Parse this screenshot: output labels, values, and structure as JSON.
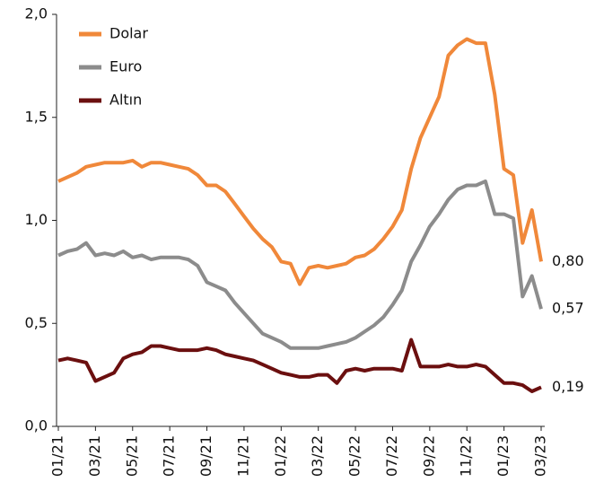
{
  "chart_data": {
    "type": "line",
    "categories": [
      "01/21",
      null,
      null,
      null,
      "03/21",
      null,
      null,
      null,
      "05/21",
      null,
      null,
      null,
      "07/21",
      null,
      null,
      null,
      "09/21",
      null,
      null,
      null,
      "11/21",
      null,
      null,
      null,
      "01/22",
      null,
      null,
      null,
      "03/22",
      null,
      null,
      null,
      "05/22",
      null,
      null,
      null,
      "07/22",
      null,
      null,
      null,
      "09/22",
      null,
      null,
      null,
      "11/22",
      null,
      null,
      null,
      "01/23",
      null,
      null,
      null,
      "03/23"
    ],
    "series": [
      {
        "name": "Dolar",
        "color": "#f0883a",
        "values": [
          1.19,
          1.21,
          1.23,
          1.26,
          1.27,
          1.28,
          1.28,
          1.28,
          1.29,
          1.26,
          1.28,
          1.28,
          1.27,
          1.26,
          1.25,
          1.22,
          1.17,
          1.17,
          1.14,
          1.08,
          1.02,
          0.96,
          0.91,
          0.87,
          0.8,
          0.79,
          0.69,
          0.77,
          0.78,
          0.77,
          0.78,
          0.79,
          0.82,
          0.83,
          0.86,
          0.91,
          0.97,
          1.05,
          1.25,
          1.4,
          1.5,
          1.6,
          1.8,
          1.85,
          1.88,
          1.86,
          1.86,
          1.61,
          1.25,
          1.22,
          0.89,
          1.05,
          0.8
        ],
        "end_label": "0,80"
      },
      {
        "name": "Euro",
        "color": "#8c8c8c",
        "values": [
          0.83,
          0.85,
          0.86,
          0.89,
          0.83,
          0.84,
          0.83,
          0.85,
          0.82,
          0.83,
          0.81,
          0.82,
          0.82,
          0.82,
          0.81,
          0.78,
          0.7,
          0.68,
          0.66,
          0.6,
          0.55,
          0.5,
          0.45,
          0.43,
          0.41,
          0.38,
          0.38,
          0.38,
          0.38,
          0.39,
          0.4,
          0.41,
          0.43,
          0.46,
          0.49,
          0.53,
          0.59,
          0.66,
          0.8,
          0.88,
          0.97,
          1.03,
          1.1,
          1.15,
          1.17,
          1.17,
          1.19,
          1.03,
          1.03,
          1.01,
          0.63,
          0.73,
          0.57
        ],
        "end_label": "0,57"
      },
      {
        "name": "Altın",
        "color": "#6b0f0f",
        "values": [
          0.32,
          0.33,
          0.32,
          0.31,
          0.22,
          0.24,
          0.26,
          0.33,
          0.35,
          0.36,
          0.39,
          0.39,
          0.38,
          0.37,
          0.37,
          0.37,
          0.38,
          0.37,
          0.35,
          0.34,
          0.33,
          0.32,
          0.3,
          0.28,
          0.26,
          0.25,
          0.24,
          0.24,
          0.25,
          0.25,
          0.21,
          0.27,
          0.28,
          0.27,
          0.28,
          0.28,
          0.28,
          0.27,
          0.42,
          0.29,
          0.29,
          0.29,
          0.3,
          0.29,
          0.29,
          0.3,
          0.29,
          0.25,
          0.21,
          0.21,
          0.2,
          0.17,
          0.19
        ],
        "end_label": "0,19"
      }
    ],
    "ylim": [
      0,
      2
    ],
    "yticks": [
      {
        "value": 0,
        "label": "0,0"
      },
      {
        "value": 0.5,
        "label": "0,5"
      },
      {
        "value": 1,
        "label": "1,0"
      },
      {
        "value": 1.5,
        "label": "1,5"
      },
      {
        "value": 2,
        "label": "2,0"
      }
    ],
    "legend": "top-left",
    "grid": false
  }
}
